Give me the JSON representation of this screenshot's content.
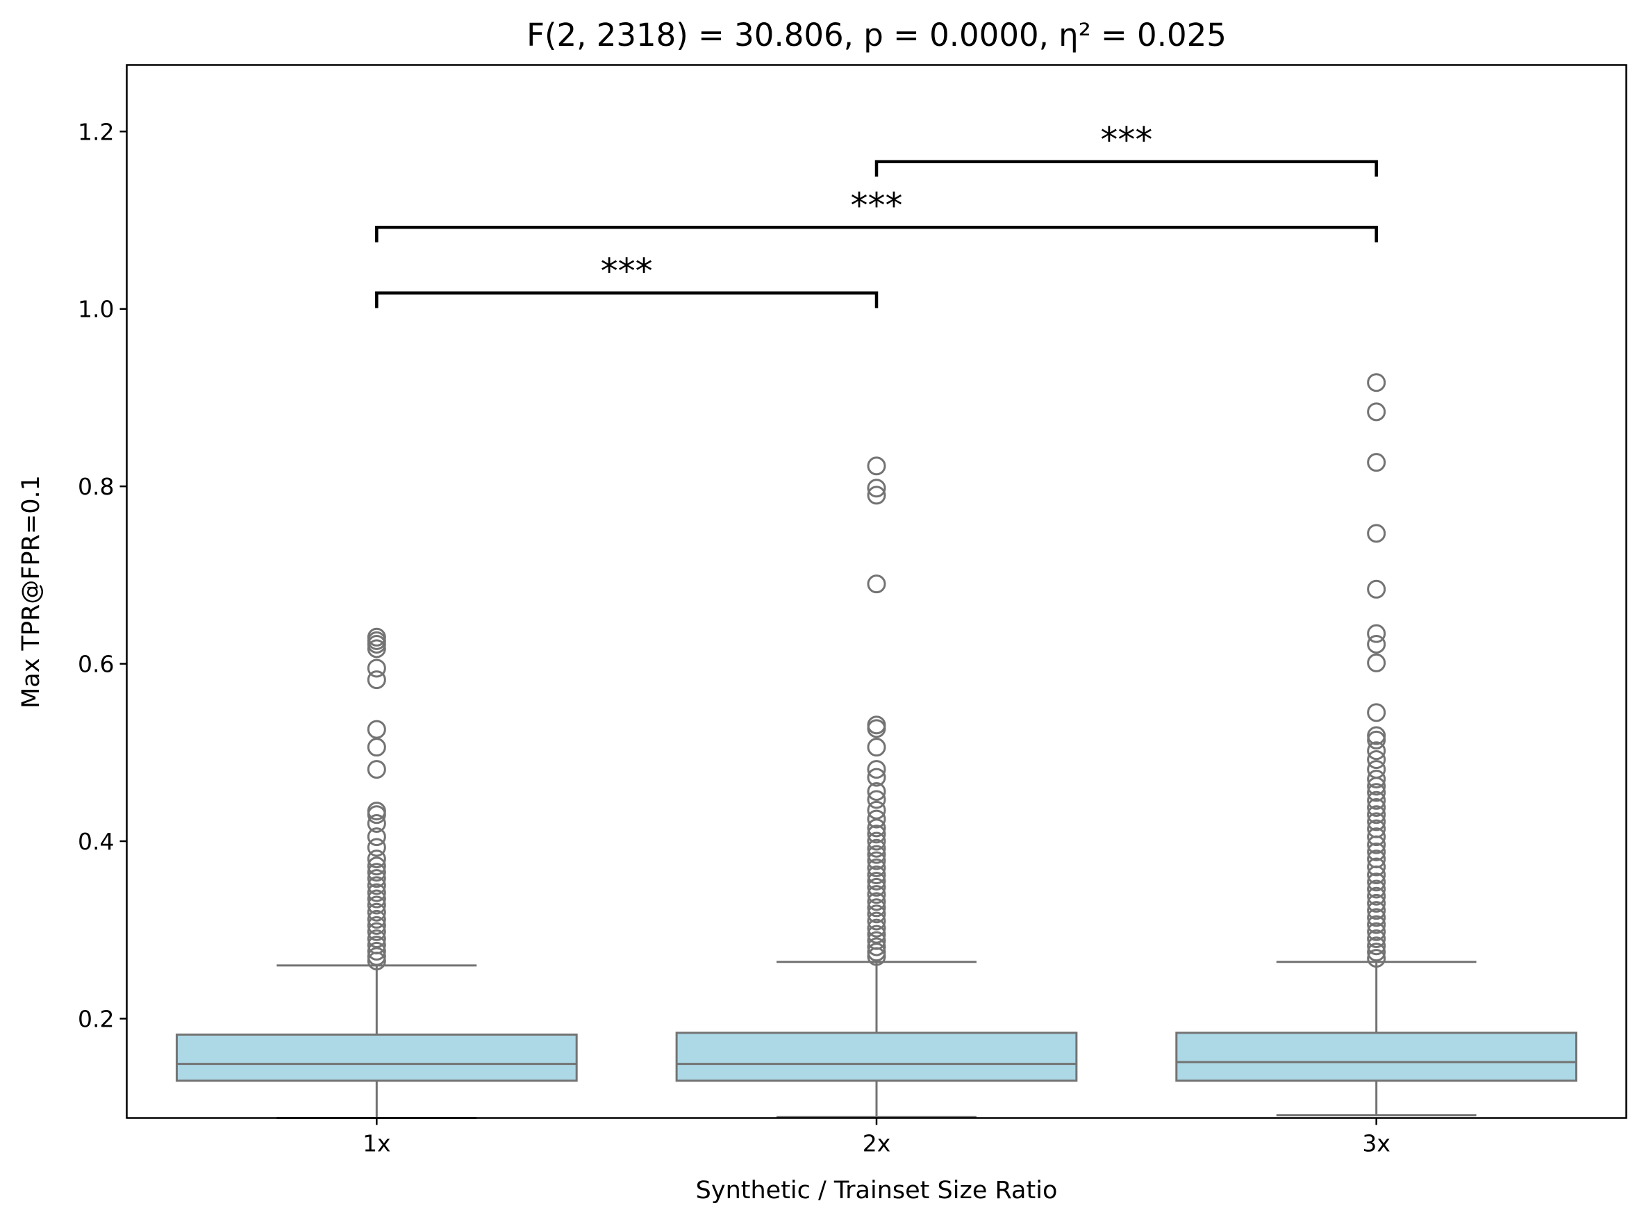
{
  "chart_data": {
    "type": "box",
    "title": "F(2, 2318) = 30.806, p = 0.0000, η² = 0.025",
    "xlabel": "Synthetic / Trainset Size Ratio",
    "ylabel": "Max TPR@FPR=0.1",
    "ylim": [
      0.088,
      1.275
    ],
    "yticks": [
      0.2,
      0.4,
      0.6,
      0.8,
      1.0,
      1.2
    ],
    "ytick_labels": [
      "0.2",
      "0.4",
      "0.6",
      "0.8",
      "1.0",
      "1.2"
    ],
    "categories": [
      "1x",
      "2x",
      "3x"
    ],
    "box_color": "#add8e6",
    "line_color": "#737373",
    "groups": [
      {
        "name": "1x",
        "whisker_low": 0.088,
        "q1": 0.13,
        "median": 0.149,
        "q3": 0.182,
        "whisker_high": 0.26,
        "outliers": [
          0.63,
          0.626,
          0.622,
          0.617,
          0.595,
          0.582,
          0.526,
          0.506,
          0.481,
          0.434,
          0.43,
          0.42,
          0.405,
          0.393,
          0.38,
          0.372,
          0.365,
          0.358,
          0.35,
          0.342,
          0.335,
          0.328,
          0.32,
          0.312,
          0.305,
          0.298,
          0.29,
          0.283,
          0.276,
          0.27,
          0.265
        ]
      },
      {
        "name": "2x",
        "whisker_low": 0.089,
        "q1": 0.13,
        "median": 0.149,
        "q3": 0.184,
        "whisker_high": 0.264,
        "outliers": [
          0.823,
          0.798,
          0.79,
          0.69,
          0.531,
          0.527,
          0.506,
          0.481,
          0.472,
          0.456,
          0.447,
          0.435,
          0.425,
          0.415,
          0.408,
          0.4,
          0.392,
          0.385,
          0.378,
          0.37,
          0.362,
          0.355,
          0.348,
          0.34,
          0.332,
          0.325,
          0.318,
          0.31,
          0.302,
          0.295,
          0.288,
          0.281,
          0.275,
          0.27
        ]
      },
      {
        "name": "3x",
        "whisker_low": 0.091,
        "q1": 0.13,
        "median": 0.151,
        "q3": 0.184,
        "whisker_high": 0.264,
        "outliers": [
          0.917,
          0.884,
          0.827,
          0.747,
          0.684,
          0.634,
          0.622,
          0.601,
          0.545,
          0.519,
          0.514,
          0.502,
          0.492,
          0.481,
          0.47,
          0.462,
          0.455,
          0.446,
          0.438,
          0.43,
          0.422,
          0.414,
          0.405,
          0.396,
          0.388,
          0.38,
          0.371,
          0.362,
          0.354,
          0.346,
          0.338,
          0.33,
          0.322,
          0.314,
          0.306,
          0.298,
          0.29,
          0.282,
          0.275,
          0.268
        ]
      }
    ],
    "significance": [
      {
        "from": "1x",
        "to": "2x",
        "label": "***",
        "y": 1.018,
        "tip": 0.017
      },
      {
        "from": "1x",
        "to": "3x",
        "label": "***",
        "y": 1.092,
        "tip": 0.017
      },
      {
        "from": "2x",
        "to": "3x",
        "label": "***",
        "y": 1.166,
        "tip": 0.017
      }
    ]
  }
}
